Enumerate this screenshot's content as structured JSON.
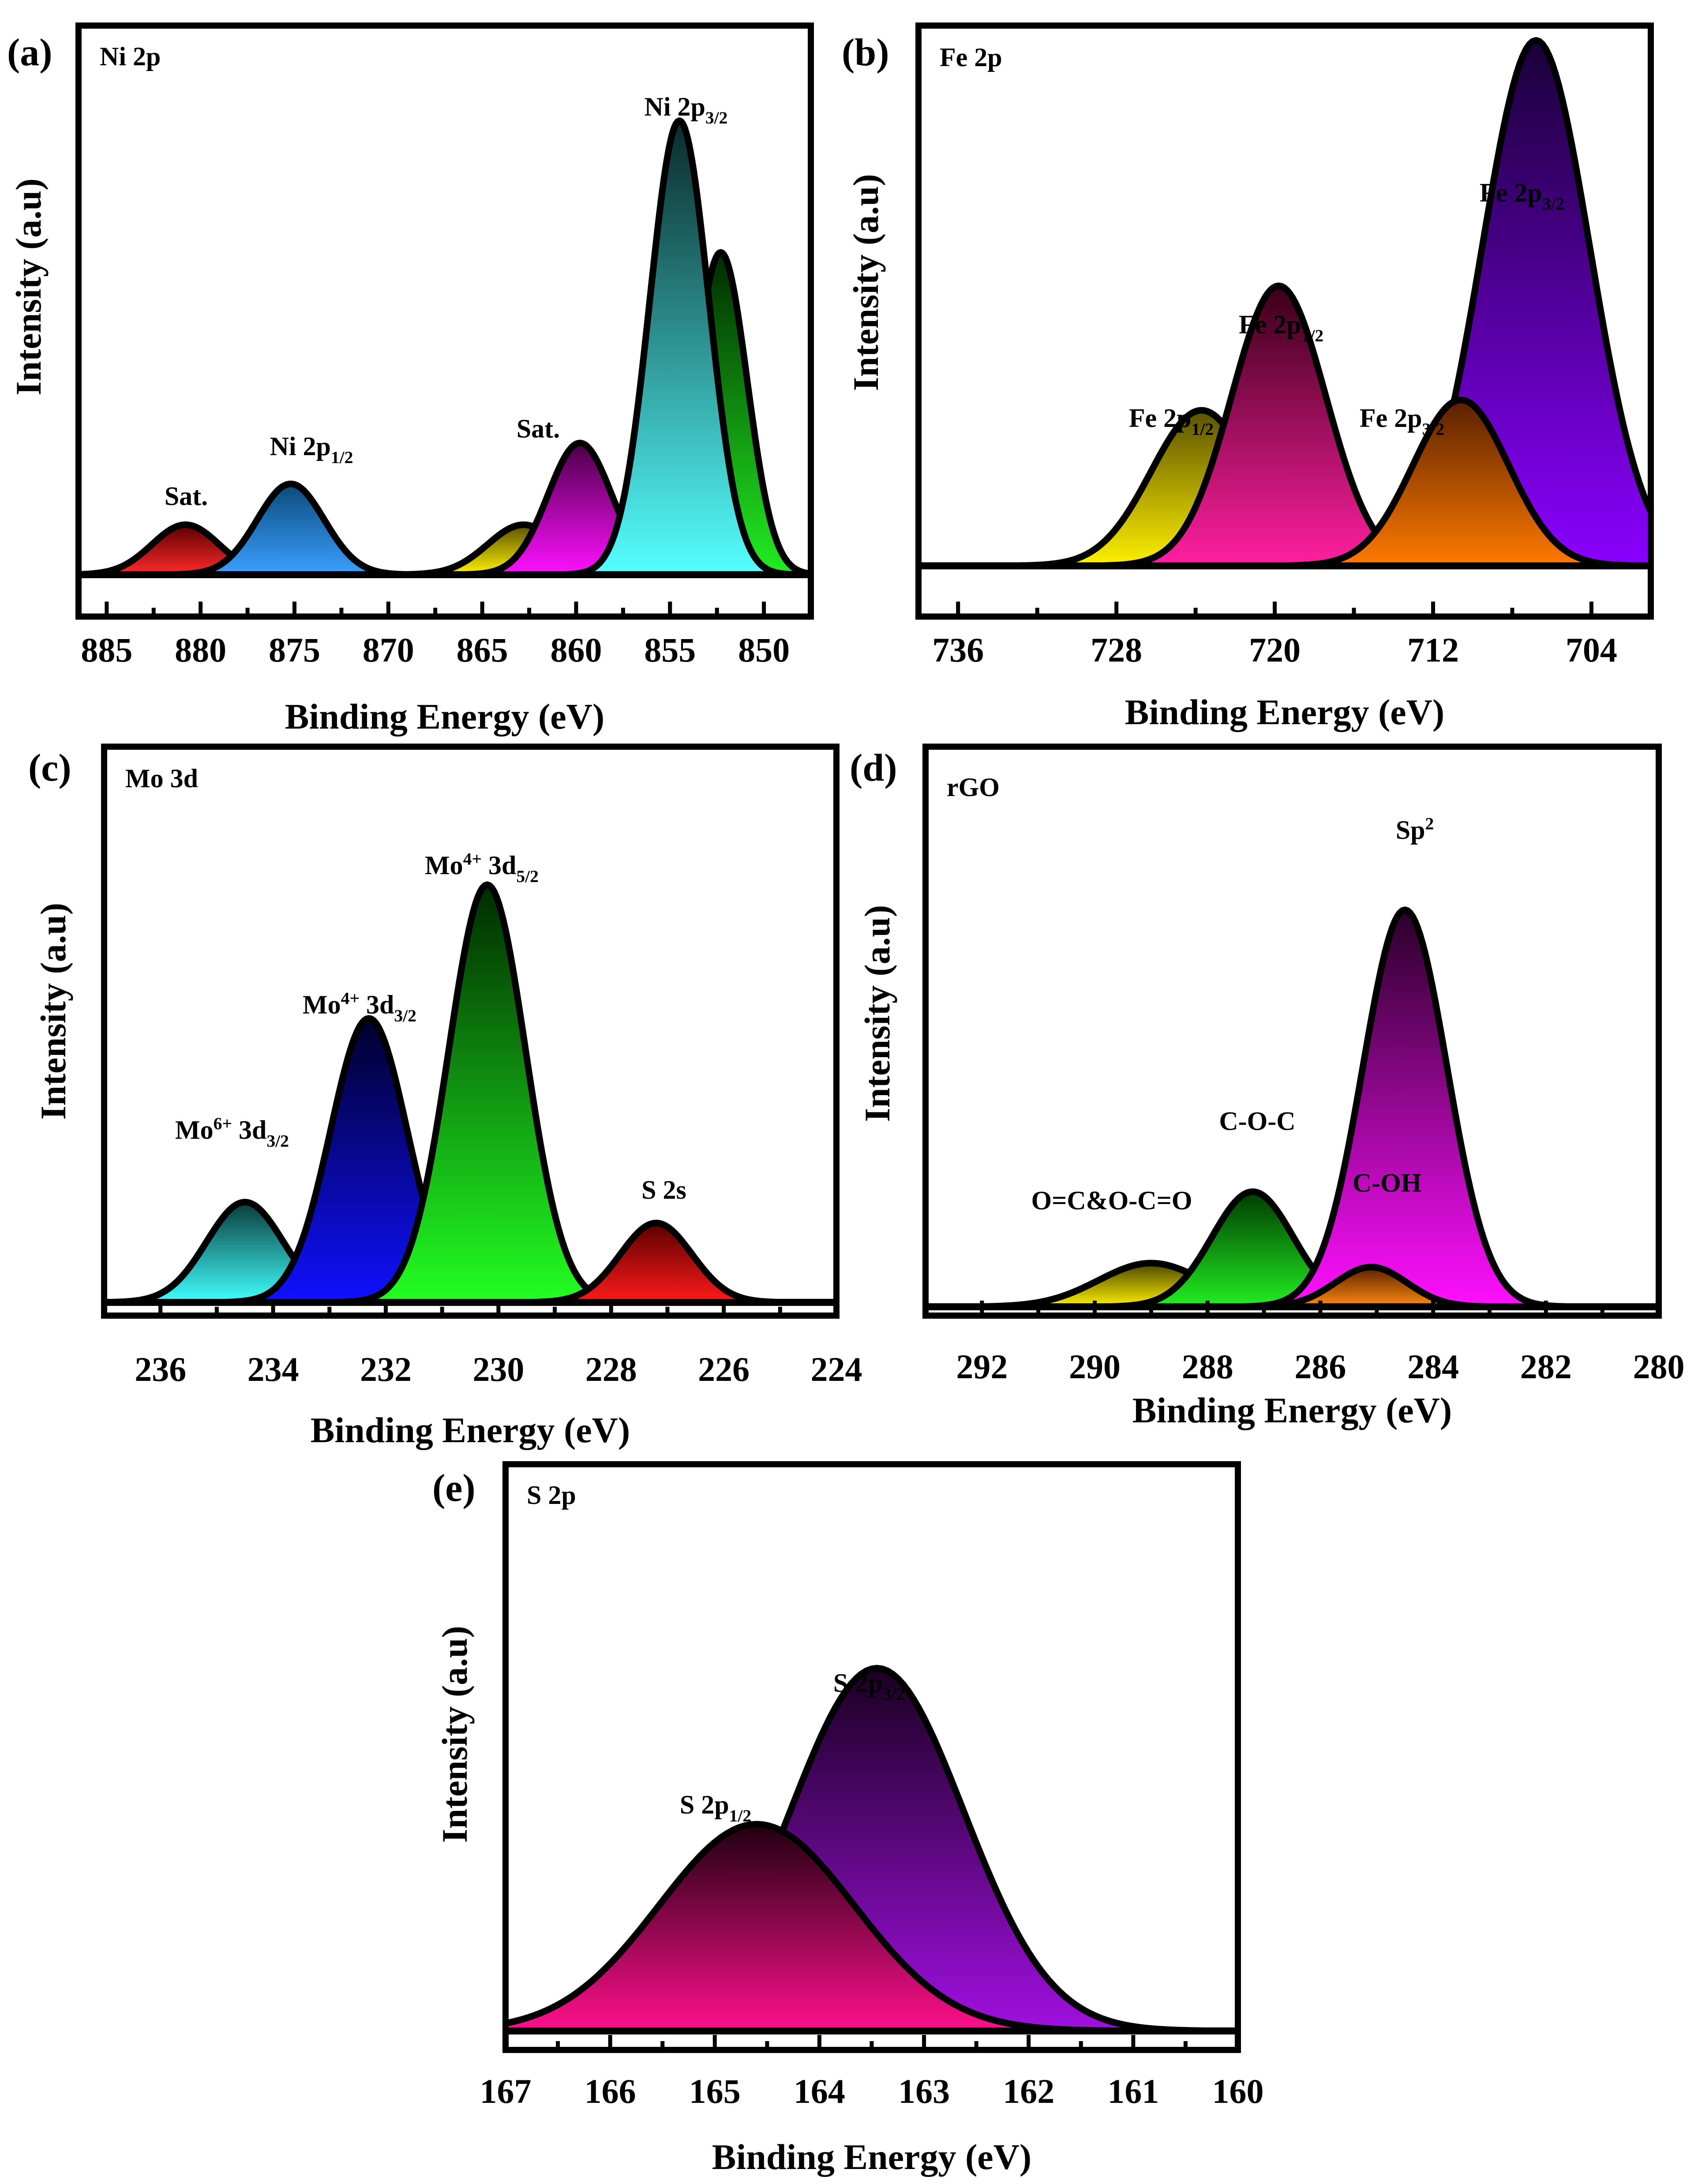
{
  "chart_data": [
    {
      "type": "area",
      "panel_letter": "(a)",
      "title": "Ni 2p",
      "xlabel": "Binding Energy (eV)",
      "ylabel": "Intensity (a.u)",
      "xlim": [
        886.5,
        847.5
      ],
      "ylim": [
        -0.08,
        1.2
      ],
      "x_ticks": [
        885,
        880,
        875,
        870,
        865,
        860,
        855,
        850
      ],
      "x_tick_labels": [
        "885",
        "880",
        "875",
        "870",
        "865",
        "860",
        "855",
        "850"
      ],
      "grid": false,
      "series": [
        {
          "name": "Sat. (880.8 eV)",
          "center": 880.8,
          "height": 0.11,
          "fwhm": 4.2,
          "color_top": "#5a0000",
          "color_bottom": "#ff2a2a"
        },
        {
          "name": "Ni 2p1/2",
          "center": 875.2,
          "height": 0.2,
          "fwhm": 4.2,
          "color_top": "#0b4a7a",
          "color_bottom": "#3aa0ff"
        },
        {
          "name": "Sat. (862.8 eV)",
          "center": 862.8,
          "height": 0.11,
          "fwhm": 4.5,
          "color_top": "#5a5000",
          "color_bottom": "#fff200"
        },
        {
          "name": "Sat. (859.8 eV)",
          "center": 859.8,
          "height": 0.29,
          "fwhm": 4.0,
          "color_top": "#4a0048",
          "color_bottom": "#ff10ff"
        },
        {
          "name": "Ni 2p3/2 (852.3 eV)",
          "center": 852.3,
          "height": 0.71,
          "fwhm": 3.3,
          "color_top": "#002a00",
          "color_bottom": "#22ee22"
        },
        {
          "name": "Ni 2p3/2",
          "center": 854.5,
          "height": 1.0,
          "fwhm": 3.7,
          "color_top": "#0a2a2a",
          "color_bottom": "#55ffff"
        }
      ],
      "peak_labels": [
        {
          "text": "Sat.",
          "anchor_x": 880.8
        },
        {
          "base": "Ni 2p",
          "sub": "1/2",
          "anchor_x": 875.2
        },
        {
          "text": "Sat.",
          "anchor_x": 862.8
        },
        {
          "base": "Ni 2p",
          "sub": "3/2",
          "anchor_x": 854.5
        }
      ]
    },
    {
      "type": "area",
      "panel_letter": "(b)",
      "title": "Fe 2p",
      "xlabel": "Binding Energy (eV)",
      "ylabel": "Intensity (a.u)",
      "xlim": [
        738,
        701
      ],
      "ylim": [
        -0.12,
        1.55
      ],
      "x_ticks": [
        736,
        728,
        720,
        712,
        704
      ],
      "x_tick_labels": [
        "736",
        "728",
        "720",
        "712",
        "704"
      ],
      "grid": false,
      "series": [
        {
          "name": "Fe 2p1/2 (723.7 eV)",
          "center": 723.7,
          "height": 0.45,
          "fwhm": 6.0,
          "color_top": "#5a5000",
          "color_bottom": "#fff000"
        },
        {
          "name": "Fe 2p1/2 (719.8 eV)",
          "center": 719.8,
          "height": 0.81,
          "fwhm": 5.6,
          "color_top": "#3a0018",
          "color_bottom": "#ff1fa0"
        },
        {
          "name": "Fe 2p3/2 (706.8 eV)",
          "center": 706.8,
          "height": 1.52,
          "fwhm": 6.4,
          "color_top": "#1a0038",
          "color_bottom": "#8a00ff"
        },
        {
          "name": "Fe 2p3/2 (710.6 eV)",
          "center": 710.6,
          "height": 0.48,
          "fwhm": 5.7,
          "color_top": "#5a2000",
          "color_bottom": "#ff7a00"
        }
      ],
      "peak_labels": [
        {
          "base": "Fe 2p",
          "sub": "1/2",
          "anchor_x": 723.7
        },
        {
          "base": "Fe 2p",
          "sub": "1/2",
          "anchor_x": 719.8
        },
        {
          "base": "Fe 2p",
          "sub": "3/2",
          "anchor_x": 710.6
        },
        {
          "base": "Fe 2p",
          "sub": "3/2",
          "anchor_x": 706.8
        }
      ]
    },
    {
      "type": "area",
      "panel_letter": "(c)",
      "title": "Mo 3d",
      "xlabel": "Binding Energy (eV)",
      "ylabel": "Intensity (a.u)",
      "xlim": [
        237,
        224
      ],
      "ylim": [
        -0.08,
        1.32
      ],
      "x_ticks": [
        236,
        234,
        232,
        230,
        228,
        226,
        224
      ],
      "x_tick_labels": [
        "236",
        "234",
        "232",
        "230",
        "228",
        "226",
        "224"
      ],
      "grid": false,
      "series": [
        {
          "name": "Mo6+ 3d3/2",
          "center": 234.5,
          "height": 0.24,
          "fwhm": 1.6,
          "color_top": "#0a3a3a",
          "color_bottom": "#40ffff"
        },
        {
          "name": "Mo4+ 3d3/2",
          "center": 232.3,
          "height": 0.68,
          "fwhm": 1.6,
          "color_top": "#00002a",
          "color_bottom": "#1010ff"
        },
        {
          "name": "Mo4+ 3d5/2",
          "center": 230.2,
          "height": 1.0,
          "fwhm": 1.6,
          "color_top": "#002a00",
          "color_bottom": "#22ff22"
        },
        {
          "name": "S 2s",
          "center": 227.2,
          "height": 0.19,
          "fwhm": 1.5,
          "color_top": "#5a0000",
          "color_bottom": "#ff1a1a"
        }
      ],
      "peak_labels": [
        {
          "base": "Mo",
          "sup": "6+",
          "mid": " 3d",
          "sub": "3/2",
          "anchor_x": 234.5
        },
        {
          "base": "Mo",
          "sup": "4+",
          "mid": " 3d",
          "sub": "3/2",
          "anchor_x": 232.3
        },
        {
          "base": "Mo",
          "sup": "4+",
          "mid": " 3d",
          "sub": "5/2",
          "anchor_x": 230.2
        },
        {
          "text": "S 2s",
          "anchor_x": 227.2
        }
      ]
    },
    {
      "type": "area",
      "panel_letter": "(d)",
      "title": "rGO",
      "xlabel": "Binding Energy (eV)",
      "ylabel": "Intensity (a.u)",
      "xlim": [
        293,
        280
      ],
      "ylim": [
        -0.12,
        1.4
      ],
      "x_ticks": [
        292,
        290,
        288,
        286,
        284,
        282,
        280
      ],
      "x_tick_labels": [
        "292",
        "290",
        "288",
        "286",
        "284",
        "282",
        "280"
      ],
      "grid": false,
      "series": [
        {
          "name": "O=C&O-C=O",
          "center": 289.0,
          "height": 0.11,
          "fwhm": 2.2,
          "color_top": "#4a4400",
          "color_bottom": "#fff000"
        },
        {
          "name": "C-O-C",
          "center": 287.2,
          "height": 0.29,
          "fwhm": 1.7,
          "color_top": "#003a00",
          "color_bottom": "#22ee22"
        },
        {
          "name": "Sp2",
          "center": 284.5,
          "height": 1.0,
          "fwhm": 1.75,
          "color_top": "#2a0028",
          "color_bottom": "#ff10ff"
        },
        {
          "name": "C-OH",
          "center": 285.1,
          "height": 0.1,
          "fwhm": 1.5,
          "color_top": "#5a2000",
          "color_bottom": "#ff8a10"
        }
      ],
      "peak_labels": [
        {
          "text": "O=C&O-C=O",
          "anchor_x": 289.0
        },
        {
          "text": "C-O-C",
          "anchor_x": 287.2
        },
        {
          "text": "C-OH",
          "anchor_x": 285.1
        },
        {
          "base": "Sp",
          "sup": "2",
          "anchor_x": 284.5
        }
      ]
    },
    {
      "type": "area",
      "panel_letter": "(e)",
      "title": "S 2p",
      "xlabel": "Binding Energy (eV)",
      "ylabel": "Intensity (a.u)",
      "xlim": [
        167,
        160
      ],
      "ylim": [
        -0.04,
        1.55
      ],
      "x_ticks": [
        167,
        166,
        165,
        164,
        163,
        162,
        161,
        160
      ],
      "x_tick_labels": [
        "167",
        "166",
        "165",
        "164",
        "163",
        "162",
        "161",
        "160"
      ],
      "grid": false,
      "series": [
        {
          "name": "S 2p3/2",
          "center": 163.45,
          "height": 1.0,
          "fwhm": 1.95,
          "color_top": "#1a0022",
          "color_bottom": "#a010e0"
        },
        {
          "name": "S 2p1/2",
          "center": 164.6,
          "height": 0.57,
          "fwhm": 2.2,
          "color_top": "#200010",
          "color_bottom": "#ff108c"
        }
      ],
      "peak_labels": [
        {
          "base": "S 2p",
          "sub": "1/2",
          "anchor_x": 164.6
        },
        {
          "base": "S 2p",
          "sub": "3/2",
          "anchor_x": 163.45
        }
      ]
    }
  ]
}
